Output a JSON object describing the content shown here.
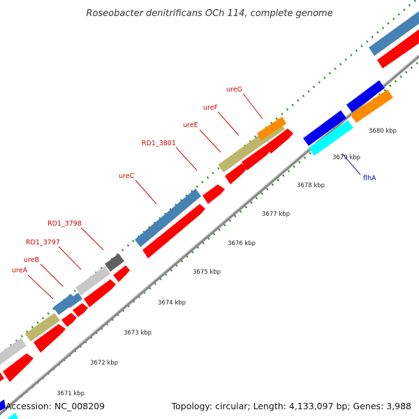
{
  "map": {
    "title": "Roseobacter denitrificans OCh 114, complete genome",
    "accession": "Accession: NC_008209",
    "summary": "Topology: circular; Length: 4,133,097 bp; Genes: 3,988"
  },
  "scale": {
    "unit": "kbp",
    "ticks": [
      "3671 kbp",
      "3672 kbp",
      "3673 kbp",
      "3674 kbp",
      "3675 kbp",
      "3676 kbp",
      "3677 kbp",
      "3678 kbp",
      "3679 kbp",
      "3680 kbp"
    ]
  },
  "gene_labels": [
    {
      "name": "ureA",
      "color": "#cc0000"
    },
    {
      "name": "ureB",
      "color": "#cc0000"
    },
    {
      "name": "RD1_3797",
      "color": "#cc0000"
    },
    {
      "name": "RD1_3798",
      "color": "#cc0000"
    },
    {
      "name": "ureC",
      "color": "#cc0000"
    },
    {
      "name": "RD1_3801",
      "color": "#cc0000"
    },
    {
      "name": "ureE",
      "color": "#cc0000"
    },
    {
      "name": "ureF",
      "color": "#cc0000"
    },
    {
      "name": "ureG",
      "color": "#cc0000"
    },
    {
      "name": "flhA",
      "color": "#0000cc"
    }
  ],
  "colors": {
    "cds": "#ff0000",
    "backbone": "#999999",
    "gc_dots": "#2e8b22",
    "cog_blue": "#4682b4",
    "cog_khaki": "#bdb76b",
    "cog_gray": "#c8c8c8",
    "cog_darkgray": "#606060",
    "cog_orange": "#ff8c00",
    "cog_darkblue": "#0000ee",
    "cog_cyan": "#00ffff"
  }
}
